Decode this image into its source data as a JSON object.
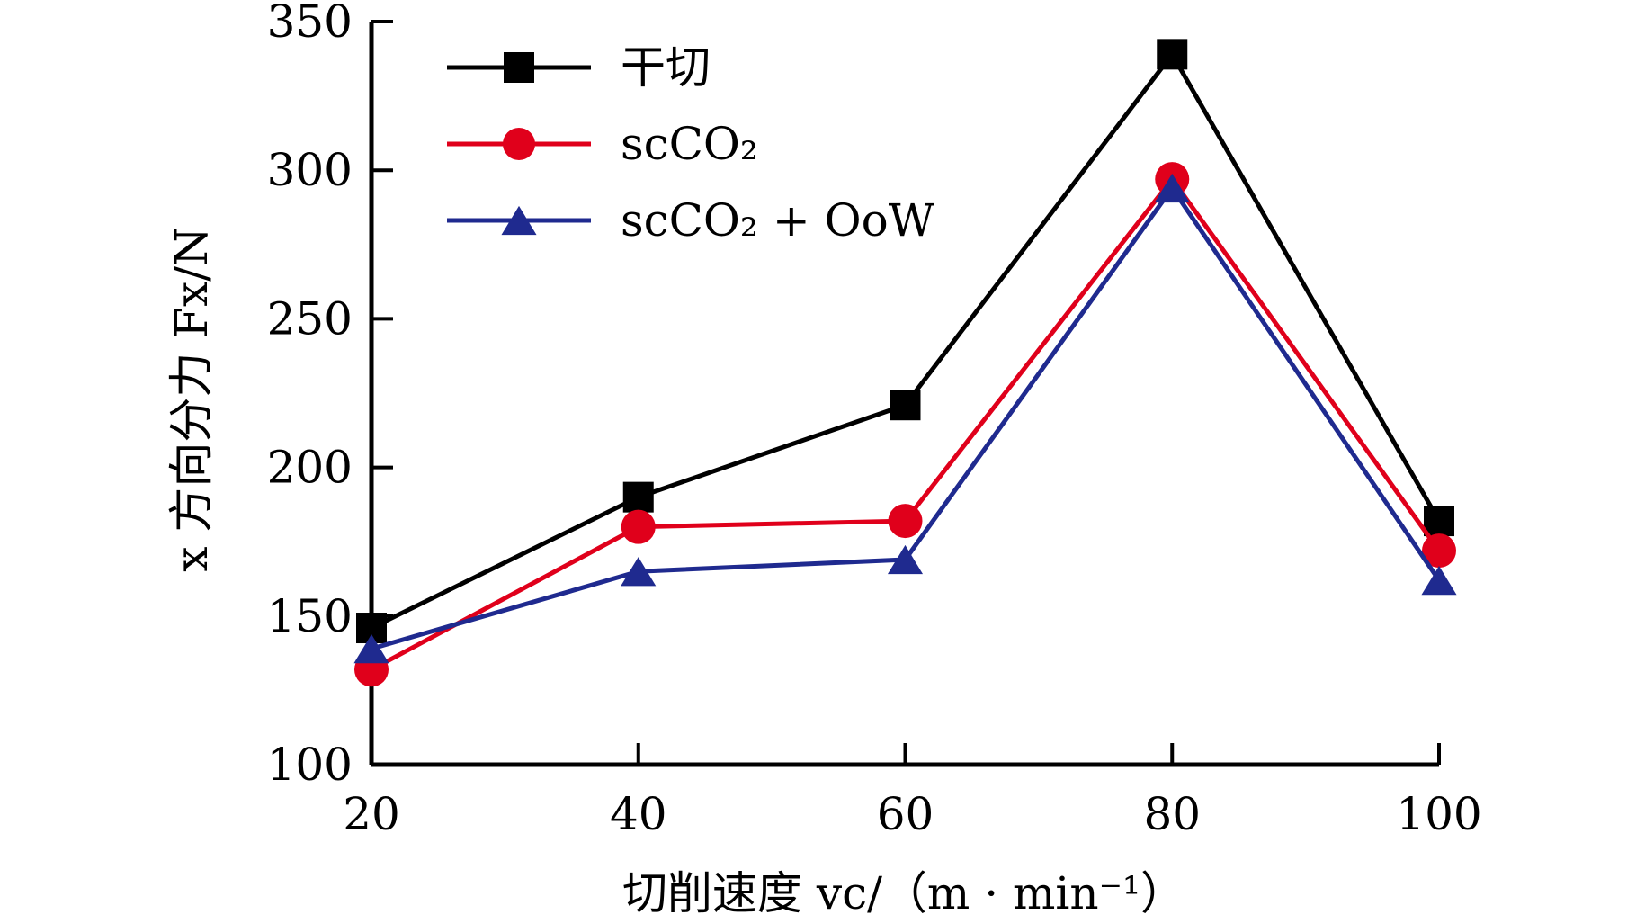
{
  "chart_data": {
    "type": "line",
    "title": "",
    "xlabel": "切削速度 vc/（m · min⁻¹）",
    "ylabel": "x 方向分力 Fx/N",
    "x": [
      20,
      40,
      60,
      80,
      100
    ],
    "xticks": [
      "20",
      "40",
      "60",
      "80",
      "100"
    ],
    "yticks": [
      "100",
      "150",
      "200",
      "250",
      "300",
      "350"
    ],
    "ylim": [
      100,
      350
    ],
    "xlim": [
      20,
      100
    ],
    "grid": false,
    "legend_position": "top-left",
    "series": [
      {
        "name": "干切",
        "marker": "square",
        "color": "#000000",
        "values": [
          146,
          190,
          221,
          339,
          182
        ]
      },
      {
        "name": "scCO₂",
        "marker": "circle",
        "color": "#e0001b",
        "values": [
          132,
          180,
          182,
          297,
          172
        ]
      },
      {
        "name": "scCO₂ + OoW",
        "marker": "triangle",
        "color": "#1f2a8f",
        "values": [
          139,
          165,
          169,
          294,
          162
        ]
      }
    ]
  }
}
